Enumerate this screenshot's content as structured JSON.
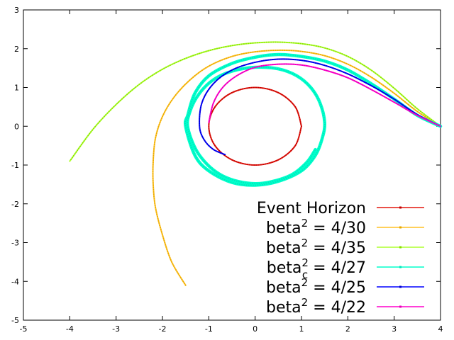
{
  "chart_data": {
    "type": "line",
    "title": "",
    "xlabel": "",
    "ylabel": "",
    "xlim": [
      -5,
      4
    ],
    "ylim": [
      -5,
      3
    ],
    "x_ticks": [
      -5,
      -4,
      -3,
      -2,
      -1,
      0,
      1,
      2,
      3,
      4
    ],
    "y_ticks": [
      -5,
      -4,
      -3,
      -2,
      -1,
      0,
      1,
      2,
      3
    ],
    "grid": false,
    "legend_position": "bottom-right",
    "series": [
      {
        "name": "Event Horizon",
        "legend_text": {
          "base": "Event Horizon",
          "sup": "",
          "sub": "",
          "tail": ""
        },
        "color": "#e3170d",
        "point_color": "#c00000",
        "x": [
          1.0,
          0.866,
          0.5,
          0.0,
          -0.5,
          -0.866,
          -1.0,
          -0.866,
          -0.5,
          0.0,
          0.5,
          0.866,
          1.0
        ],
        "y": [
          0.0,
          0.5,
          0.866,
          1.0,
          0.866,
          0.5,
          0.0,
          -0.5,
          -0.866,
          -1.0,
          -0.866,
          -0.5,
          0.0
        ]
      },
      {
        "name": "beta^2 = 4/30",
        "legend_text": {
          "base": "beta",
          "sup": "2",
          "sub": "",
          "tail": " = 4/30"
        },
        "color": "#ffc125",
        "point_color": "#e6a800",
        "x": [
          4.0,
          3.5,
          3.0,
          2.5,
          2.0,
          1.5,
          1.0,
          0.5,
          0.0,
          -0.5,
          -1.0,
          -1.4,
          -1.75,
          -2.0,
          -2.15,
          -2.2,
          -2.2,
          -2.15,
          -2.0,
          -1.8,
          -1.5
        ],
        "y": [
          0.0,
          0.38,
          0.85,
          1.27,
          1.6,
          1.82,
          1.93,
          1.96,
          1.92,
          1.8,
          1.55,
          1.2,
          0.75,
          0.25,
          -0.3,
          -0.9,
          -1.5,
          -2.1,
          -2.8,
          -3.5,
          -4.1
        ]
      },
      {
        "name": "beta^2 = 4/35",
        "legend_text": {
          "base": "beta",
          "sup": "2",
          "sub": "",
          "tail": " = 4/35"
        },
        "color": "#adff2f",
        "point_color": "#88dd00",
        "x": [
          4.0,
          3.5,
          3.0,
          2.5,
          2.0,
          1.5,
          1.0,
          0.5,
          0.0,
          -0.5,
          -1.0,
          -1.5,
          -2.0,
          -2.5,
          -3.0,
          -3.5,
          -4.0
        ],
        "y": [
          0.0,
          0.45,
          0.98,
          1.45,
          1.8,
          2.02,
          2.13,
          2.17,
          2.15,
          2.08,
          1.95,
          1.75,
          1.47,
          1.08,
          0.56,
          -0.08,
          -0.9
        ]
      },
      {
        "name": "beta^2_c = 4/27",
        "legend_text": {
          "base": "beta",
          "sup": "2",
          "sub": "c",
          "tail": " = 4/27"
        },
        "color": "#00ffcc",
        "point_color": "#00e6b8",
        "x": [
          4.0,
          3.5,
          3.0,
          2.5,
          2.0,
          1.5,
          1.0,
          0.5,
          0.0,
          -0.5,
          -1.0,
          -1.3,
          -1.45,
          -1.5,
          -1.3,
          -1.0,
          -0.5,
          0.0,
          0.5,
          1.0,
          1.3,
          1.45,
          1.5,
          1.4,
          1.2,
          0.9,
          0.5,
          0.0,
          -0.5,
          -0.9,
          -1.2,
          -1.4,
          -1.45,
          -1.2,
          -0.7,
          0.0,
          0.7,
          1.1,
          1.3
        ],
        "y": [
          0.0,
          0.28,
          0.7,
          1.1,
          1.45,
          1.68,
          1.8,
          1.85,
          1.78,
          1.62,
          1.3,
          0.85,
          0.3,
          0.0,
          -0.75,
          -1.15,
          -1.45,
          -1.52,
          -1.42,
          -1.15,
          -0.75,
          -0.3,
          0.1,
          0.6,
          1.0,
          1.3,
          1.48,
          1.52,
          1.42,
          1.2,
          0.85,
          0.4,
          -0.05,
          -0.75,
          -1.28,
          -1.48,
          -1.3,
          -0.95,
          -0.6
        ]
      },
      {
        "name": "beta^2 = 4/25",
        "legend_text": {
          "base": "beta",
          "sup": "2",
          "sub": "",
          "tail": " = 4/25"
        },
        "color": "#0000ff",
        "point_color": "#0000cc",
        "x": [
          4.0,
          3.5,
          3.0,
          2.5,
          2.0,
          1.5,
          1.0,
          0.5,
          0.0,
          -0.5,
          -0.9,
          -1.15,
          -1.2,
          -1.1,
          -0.9,
          -0.65
        ],
        "y": [
          0.0,
          0.3,
          0.7,
          1.05,
          1.35,
          1.57,
          1.7,
          1.73,
          1.65,
          1.45,
          1.1,
          0.6,
          0.0,
          -0.35,
          -0.6,
          -0.73
        ]
      },
      {
        "name": "beta^2 = 4/22",
        "legend_text": {
          "base": "beta",
          "sup": "2",
          "sub": "",
          "tail": " = 4/22"
        },
        "color": "#ff00cc",
        "point_color": "#e600b8",
        "x": [
          4.0,
          3.5,
          3.0,
          2.5,
          2.0,
          1.5,
          1.0,
          0.5,
          0.0,
          -0.4,
          -0.7,
          -0.9,
          -1.0
        ],
        "y": [
          0.0,
          0.28,
          0.62,
          0.95,
          1.25,
          1.45,
          1.58,
          1.6,
          1.52,
          1.3,
          1.0,
          0.6,
          0.1
        ]
      }
    ]
  }
}
